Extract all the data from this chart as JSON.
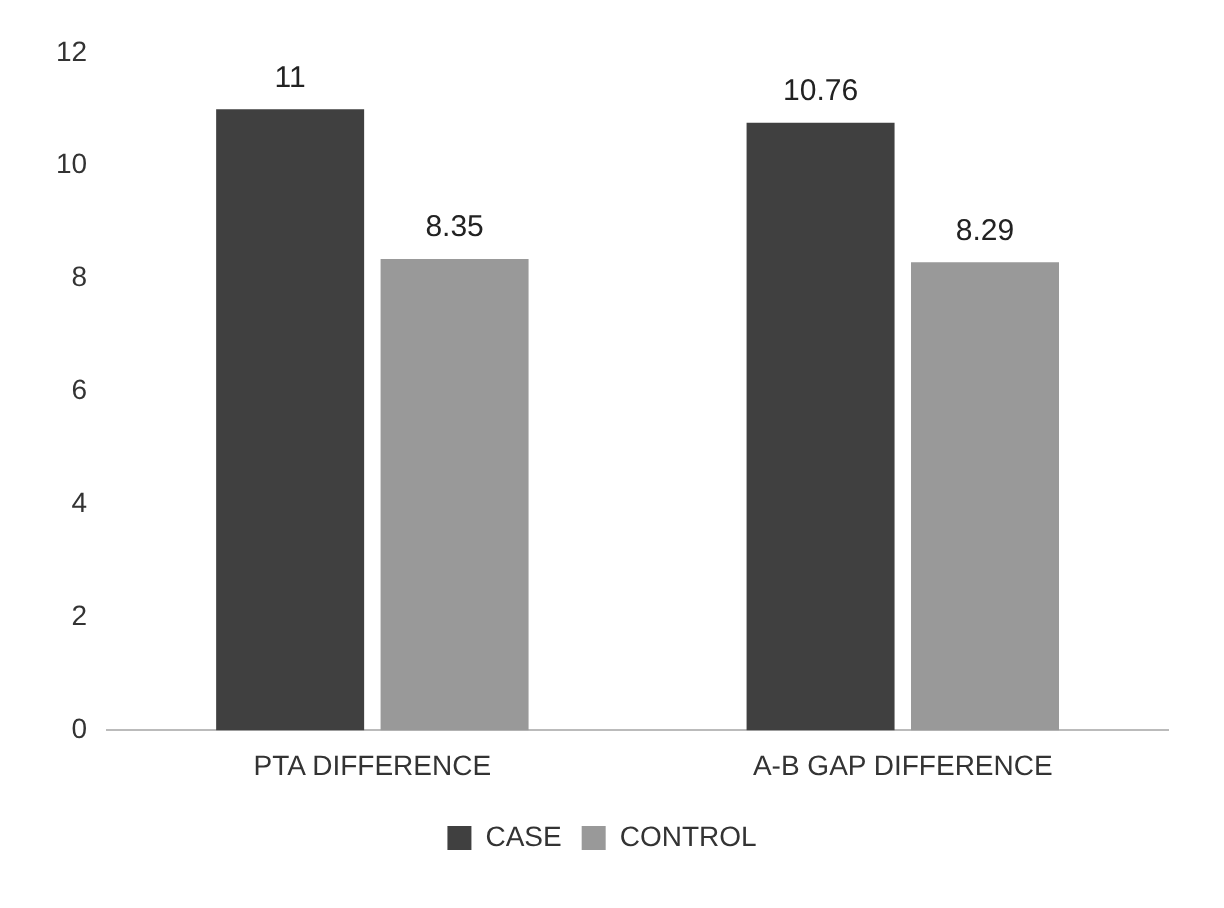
{
  "chart_data": {
    "type": "bar",
    "categories": [
      "PTA DIFFERENCE",
      "A-B GAP DIFFERENCE"
    ],
    "series": [
      {
        "name": "CASE",
        "color": "#404040",
        "values": [
          11,
          10.76
        ]
      },
      {
        "name": "CONTROL",
        "color": "#999999",
        "values": [
          8.35,
          8.29
        ]
      }
    ],
    "ylim": [
      0,
      12
    ],
    "yticks": [
      0,
      2,
      4,
      6,
      8,
      10,
      12
    ],
    "grid": false,
    "legend": "bottom",
    "data_labels": true
  }
}
